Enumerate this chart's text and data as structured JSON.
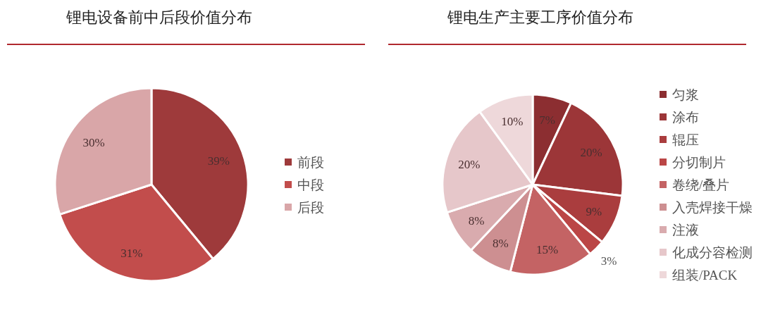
{
  "chart_data": [
    {
      "type": "pie",
      "title": "锂电设备前中后段价值分布",
      "categories": [
        "前段",
        "中段",
        "后段"
      ],
      "values": [
        39,
        31,
        30
      ],
      "colors": [
        "#9e3a3b",
        "#c24d4c",
        "#d9a6a8"
      ],
      "value_labels": [
        "39%",
        "31%",
        "30%"
      ],
      "legend": "right"
    },
    {
      "type": "pie",
      "title": "锂电生产主要工序价值分布",
      "categories": [
        "匀浆",
        "涂布",
        "辊压",
        "分切制片",
        "卷绕/叠片",
        "入壳焊接干燥",
        "注液",
        "化成分容检测",
        "组装/PACK"
      ],
      "values": [
        7,
        20,
        9,
        3,
        15,
        8,
        8,
        20,
        10
      ],
      "colors": [
        "#8c2e31",
        "#9c3638",
        "#aa3d3e",
        "#bb4646",
        "#c46364",
        "#cd8f91",
        "#d9abae",
        "#e6c7ca",
        "#eed8da"
      ],
      "value_labels": [
        "7%",
        "20%",
        "9%",
        "3%",
        "15%",
        "8%",
        "8%",
        "20%",
        "10%"
      ],
      "legend": "right"
    }
  ]
}
